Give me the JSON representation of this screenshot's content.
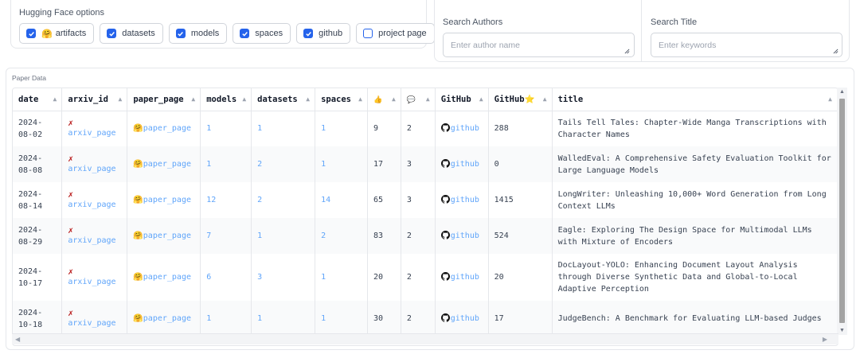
{
  "hf_options": {
    "title": "Hugging Face options",
    "checkboxes": [
      {
        "label": "artifacts",
        "checked": true,
        "emoji": "🤗"
      },
      {
        "label": "datasets",
        "checked": true
      },
      {
        "label": "models",
        "checked": true
      },
      {
        "label": "spaces",
        "checked": true
      },
      {
        "label": "github",
        "checked": true
      },
      {
        "label": "project page",
        "checked": false
      }
    ]
  },
  "search": {
    "authors": {
      "label": "Search Authors",
      "placeholder": "Enter author name"
    },
    "title": {
      "label": "Search Title",
      "placeholder": "Enter keywords"
    }
  },
  "table": {
    "label": "Paper Data",
    "headers": [
      "date",
      "arxiv_id",
      "paper_page",
      "models",
      "datasets",
      "spaces",
      "👍",
      "💬",
      "GitHub",
      "GitHub⭐",
      "title"
    ],
    "rows": [
      {
        "date": "2024-08-02",
        "arxiv": "arxiv_page",
        "paper": "paper_page",
        "models": "1",
        "datasets": "1",
        "spaces": "1",
        "likes": "9",
        "comments": "2",
        "github": "github",
        "stars": "288",
        "title": "Tails Tell Tales: Chapter-Wide Manga Transcriptions with Character Names"
      },
      {
        "date": "2024-08-08",
        "arxiv": "arxiv_page",
        "paper": "paper_page",
        "models": "1",
        "datasets": "2",
        "spaces": "1",
        "likes": "17",
        "comments": "3",
        "github": "github",
        "stars": "0",
        "title": "WalledEval: A Comprehensive Safety Evaluation Toolkit for Large Language Models"
      },
      {
        "date": "2024-08-14",
        "arxiv": "arxiv_page",
        "paper": "paper_page",
        "models": "12",
        "datasets": "2",
        "spaces": "14",
        "likes": "65",
        "comments": "3",
        "github": "github",
        "stars": "1415",
        "title": "LongWriter: Unleashing 10,000+ Word Generation from Long Context LLMs"
      },
      {
        "date": "2024-08-29",
        "arxiv": "arxiv_page",
        "paper": "paper_page",
        "models": "7",
        "datasets": "1",
        "spaces": "2",
        "likes": "83",
        "comments": "2",
        "github": "github",
        "stars": "524",
        "title": "Eagle: Exploring The Design Space for Multimodal LLMs with Mixture of Encoders"
      },
      {
        "date": "2024-10-17",
        "arxiv": "arxiv_page",
        "paper": "paper_page",
        "models": "6",
        "datasets": "3",
        "spaces": "1",
        "likes": "20",
        "comments": "2",
        "github": "github",
        "stars": "20",
        "title": "DocLayout-YOLO: Enhancing Document Layout Analysis through Diverse Synthetic Data and Global-to-Local Adaptive Perception"
      },
      {
        "date": "2024-10-18",
        "arxiv": "arxiv_page",
        "paper": "paper_page",
        "models": "1",
        "datasets": "1",
        "spaces": "1",
        "likes": "30",
        "comments": "2",
        "github": "github",
        "stars": "17",
        "title": "JudgeBench: A Benchmark for Evaluating LLM-based Judges"
      }
    ]
  },
  "colors": {
    "accent": "#2563eb",
    "link": "#60a5fa",
    "border": "#e5e7eb"
  }
}
